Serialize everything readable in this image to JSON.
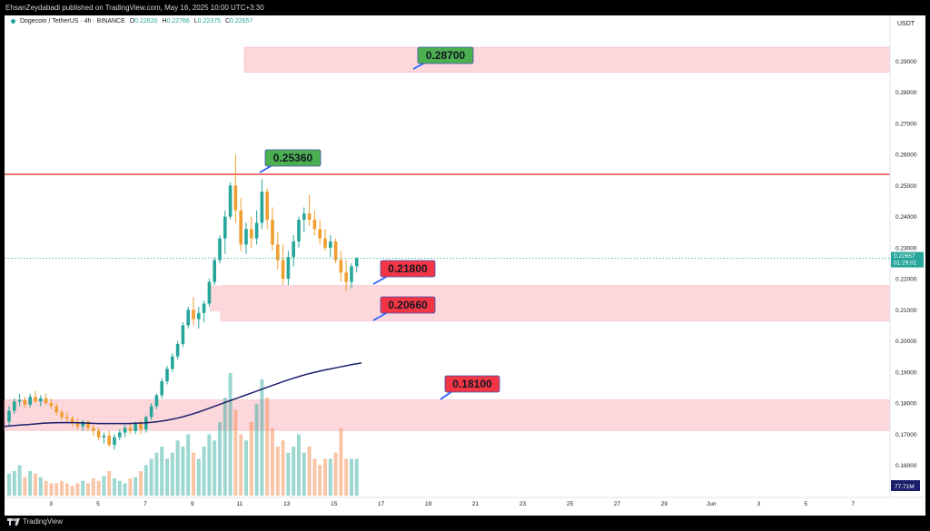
{
  "header": {
    "publisher": "EhsanZeydabadi published on TradingView.com, May 16, 2025 10:00 UTC+3:30"
  },
  "legend": {
    "symbol": "Dogecoin / TetherUS · 4h · BINANCE",
    "o_label": "O",
    "o": "0.22620",
    "h_label": "H",
    "h": "0.22766",
    "l_label": "L",
    "l": "0.22375",
    "c_label": "C",
    "c": "0.22657"
  },
  "currency": "USDT",
  "footer": {
    "brand": "TradingView"
  },
  "colors": {
    "up": "#26a69a",
    "down": "#ef9e2f",
    "resistance": "#e53935",
    "zone": "#fcd7dc",
    "ma": "#1b1f6b",
    "green_label": "#4caf50",
    "red_label": "#f23645"
  },
  "chart_data": {
    "type": "candlestick",
    "ylim": [
      0.155,
      0.297
    ],
    "y_ticks": [
      "0.29000",
      "0.28000",
      "0.27000",
      "0.26000",
      "0.25000",
      "0.24000",
      "0.23000",
      "0.22000",
      "0.21000",
      "0.20000",
      "0.19000",
      "0.18000",
      "0.17000",
      "0.16000"
    ],
    "x_ticks": [
      "3",
      "5",
      "7",
      "9",
      "11",
      "13",
      "15",
      "17",
      "19",
      "21",
      "23",
      "25",
      "27",
      "29",
      "Jun",
      "3",
      "5",
      "7"
    ],
    "price_label": {
      "value": "0.22657",
      "countdown": "01:29:01"
    },
    "indicator_value": "77.71M",
    "resistance_line": 0.2536,
    "zones": [
      {
        "low": 0.2865,
        "high": 0.2945
      },
      {
        "low": 0.2065,
        "high": 0.2178
      },
      {
        "low": 0.1712,
        "high": 0.181
      }
    ],
    "annotations": [
      {
        "text": "0.28700",
        "color": "green"
      },
      {
        "text": "0.25360",
        "color": "green"
      },
      {
        "text": "0.21800",
        "color": "red"
      },
      {
        "text": "0.20660",
        "color": "red"
      },
      {
        "text": "0.18100",
        "color": "red"
      }
    ],
    "candles": [
      [
        0.174,
        0.179,
        0.1725,
        0.1775
      ],
      [
        0.1775,
        0.1815,
        0.1765,
        0.1805
      ],
      [
        0.1805,
        0.183,
        0.179,
        0.181
      ],
      [
        0.181,
        0.182,
        0.1785,
        0.1795
      ],
      [
        0.1795,
        0.183,
        0.1785,
        0.182
      ],
      [
        0.182,
        0.184,
        0.18,
        0.1805
      ],
      [
        0.1805,
        0.1825,
        0.179,
        0.1815
      ],
      [
        0.1815,
        0.183,
        0.1795,
        0.18
      ],
      [
        0.18,
        0.1815,
        0.178,
        0.179
      ],
      [
        0.179,
        0.18,
        0.176,
        0.177
      ],
      [
        0.177,
        0.178,
        0.1745,
        0.1755
      ],
      [
        0.1755,
        0.177,
        0.174,
        0.175
      ],
      [
        0.175,
        0.176,
        0.1725,
        0.1735
      ],
      [
        0.1735,
        0.175,
        0.1715,
        0.1725
      ],
      [
        0.1725,
        0.1745,
        0.171,
        0.174
      ],
      [
        0.174,
        0.1745,
        0.171,
        0.172
      ],
      [
        0.172,
        0.173,
        0.1695,
        0.171
      ],
      [
        0.171,
        0.172,
        0.168,
        0.169
      ],
      [
        0.169,
        0.1705,
        0.167,
        0.1695
      ],
      [
        0.1695,
        0.171,
        0.166,
        0.1665
      ],
      [
        0.1665,
        0.17,
        0.165,
        0.169
      ],
      [
        0.169,
        0.1715,
        0.168,
        0.1705
      ],
      [
        0.1705,
        0.173,
        0.169,
        0.172
      ],
      [
        0.172,
        0.1735,
        0.17,
        0.171
      ],
      [
        0.171,
        0.174,
        0.17,
        0.1735
      ],
      [
        0.1735,
        0.1745,
        0.17,
        0.1715
      ],
      [
        0.1715,
        0.176,
        0.1705,
        0.1755
      ],
      [
        0.1755,
        0.18,
        0.1745,
        0.179
      ],
      [
        0.179,
        0.183,
        0.178,
        0.1825
      ],
      [
        0.1825,
        0.188,
        0.1815,
        0.187
      ],
      [
        0.187,
        0.192,
        0.186,
        0.191
      ],
      [
        0.191,
        0.196,
        0.19,
        0.195
      ],
      [
        0.195,
        0.2,
        0.194,
        0.199
      ],
      [
        0.199,
        0.206,
        0.198,
        0.205
      ],
      [
        0.205,
        0.211,
        0.204,
        0.21
      ],
      [
        0.21,
        0.214,
        0.205,
        0.207
      ],
      [
        0.207,
        0.211,
        0.204,
        0.209
      ],
      [
        0.209,
        0.213,
        0.206,
        0.212
      ],
      [
        0.212,
        0.22,
        0.211,
        0.219
      ],
      [
        0.219,
        0.227,
        0.218,
        0.226
      ],
      [
        0.226,
        0.234,
        0.225,
        0.233
      ],
      [
        0.233,
        0.242,
        0.228,
        0.24
      ],
      [
        0.24,
        0.251,
        0.239,
        0.25
      ],
      [
        0.25,
        0.26,
        0.238,
        0.242
      ],
      [
        0.242,
        0.246,
        0.229,
        0.231
      ],
      [
        0.231,
        0.238,
        0.228,
        0.236
      ],
      [
        0.236,
        0.24,
        0.23,
        0.233
      ],
      [
        0.233,
        0.242,
        0.231,
        0.238
      ],
      [
        0.238,
        0.252,
        0.236,
        0.248
      ],
      [
        0.248,
        0.249,
        0.236,
        0.239
      ],
      [
        0.239,
        0.243,
        0.229,
        0.231
      ],
      [
        0.231,
        0.235,
        0.223,
        0.226
      ],
      [
        0.226,
        0.231,
        0.218,
        0.22
      ],
      [
        0.22,
        0.229,
        0.218,
        0.227
      ],
      [
        0.227,
        0.234,
        0.224,
        0.232
      ],
      [
        0.232,
        0.24,
        0.23,
        0.239
      ],
      [
        0.239,
        0.243,
        0.235,
        0.241
      ],
      [
        0.241,
        0.247,
        0.237,
        0.239
      ],
      [
        0.239,
        0.242,
        0.234,
        0.236
      ],
      [
        0.236,
        0.239,
        0.231,
        0.233
      ],
      [
        0.233,
        0.236,
        0.229,
        0.23
      ],
      [
        0.23,
        0.234,
        0.227,
        0.232
      ],
      [
        0.232,
        0.233,
        0.225,
        0.226
      ],
      [
        0.226,
        0.229,
        0.219,
        0.222
      ],
      [
        0.222,
        0.226,
        0.216,
        0.219
      ],
      [
        0.219,
        0.225,
        0.217,
        0.224
      ],
      [
        0.224,
        0.227,
        0.222,
        0.2266
      ]
    ],
    "ma": [
      0.1725,
      0.1727,
      0.1729,
      0.1731,
      0.1733,
      0.1735,
      0.1736,
      0.1737,
      0.1737,
      0.1737,
      0.1736,
      0.1735,
      0.1734,
      0.1734,
      0.1734,
      0.1734,
      0.1734,
      0.1735,
      0.1736,
      0.1738,
      0.1741,
      0.1745,
      0.175,
      0.1756,
      0.1763,
      0.1771,
      0.178,
      0.1789,
      0.1798,
      0.1807,
      0.1816,
      0.1825,
      0.1834,
      0.1843,
      0.1852,
      0.1861,
      0.187,
      0.1878,
      0.1886,
      0.1893,
      0.1899,
      0.1905,
      0.191,
      0.1915,
      0.192,
      0.1925,
      0.1929
    ],
    "volume": [
      0.18,
      0.2,
      0.25,
      0.15,
      0.2,
      0.18,
      0.15,
      0.12,
      0.1,
      0.1,
      0.12,
      0.1,
      0.08,
      0.1,
      0.12,
      0.1,
      0.14,
      0.12,
      0.16,
      0.2,
      0.14,
      0.12,
      0.1,
      0.14,
      0.15,
      0.2,
      0.25,
      0.3,
      0.35,
      0.4,
      0.3,
      0.35,
      0.45,
      0.4,
      0.5,
      0.35,
      0.3,
      0.4,
      0.5,
      0.45,
      0.6,
      0.8,
      1.0,
      0.7,
      0.5,
      0.45,
      0.6,
      0.75,
      0.95,
      0.8,
      0.55,
      0.4,
      0.45,
      0.35,
      0.4,
      0.5,
      0.35,
      0.4,
      0.3,
      0.25,
      0.3,
      0.3,
      0.35,
      0.55,
      0.3,
      0.3,
      0.3
    ]
  }
}
